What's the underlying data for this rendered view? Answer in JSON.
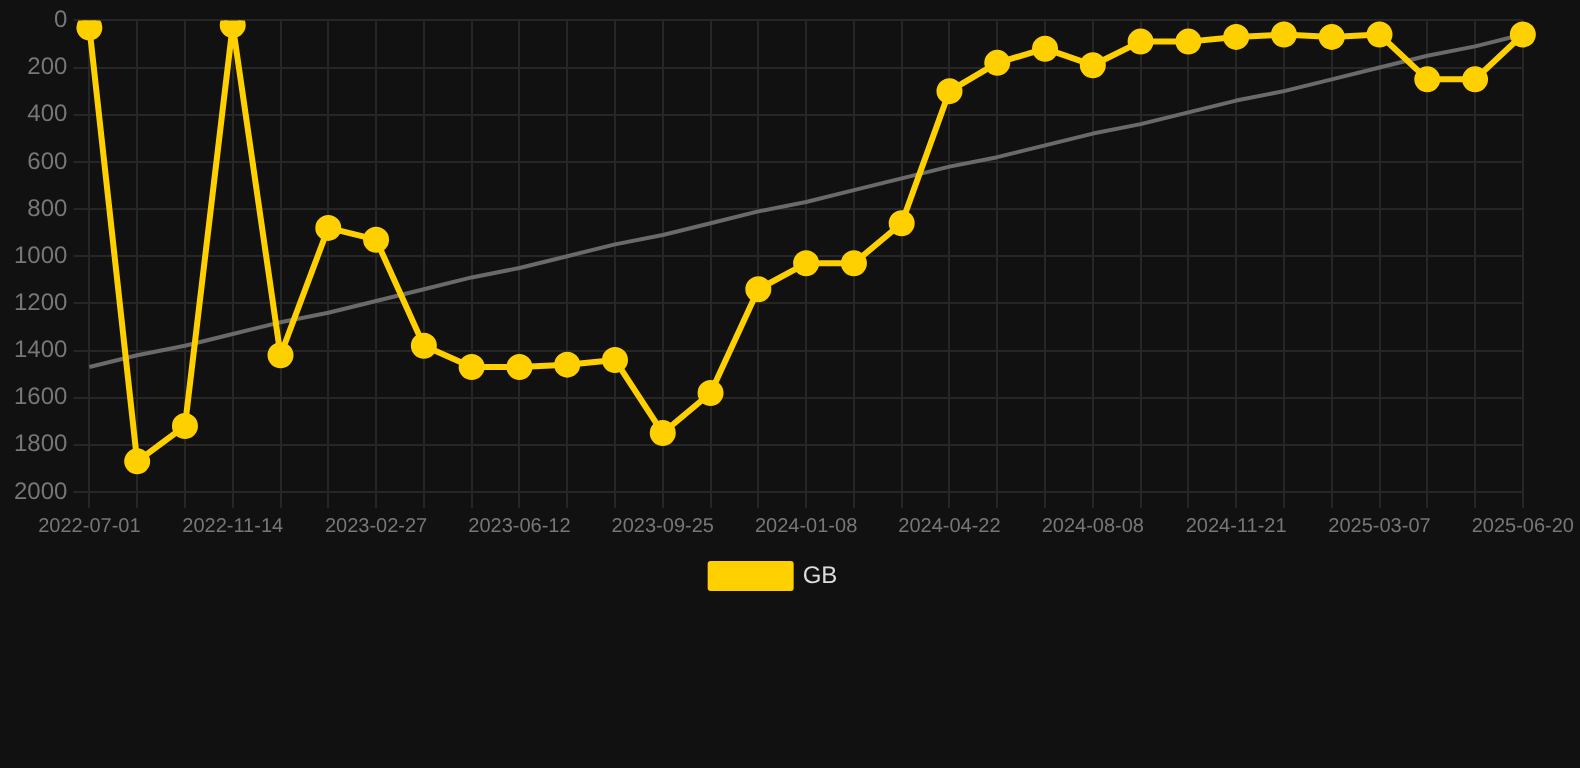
{
  "chart_data": {
    "type": "line",
    "categories": [
      "2022-07-01",
      null,
      null,
      "2022-11-14",
      null,
      null,
      "2023-02-27",
      null,
      null,
      "2023-06-12",
      null,
      null,
      "2023-09-25",
      null,
      null,
      "2024-01-08",
      null,
      null,
      "2024-04-22",
      null,
      null,
      "2024-08-08",
      null,
      null,
      "2024-11-21",
      null,
      null,
      "2025-03-07",
      null,
      null,
      "2025-06-20"
    ],
    "series": [
      {
        "name": "GB",
        "color": "#ffd000",
        "values": [
          30,
          1870,
          1720,
          20,
          1420,
          880,
          930,
          1380,
          1470,
          1470,
          1460,
          1440,
          1750,
          1580,
          1140,
          1030,
          1030,
          860,
          300,
          180,
          120,
          190,
          90,
          90,
          70,
          60,
          70,
          60,
          250,
          250,
          60
        ]
      },
      {
        "type": "line",
        "color": "#6a6a6a",
        "marker": "none",
        "values": [
          1470,
          1420,
          1380,
          1330,
          1280,
          1240,
          1190,
          1140,
          1090,
          1050,
          1000,
          950,
          910,
          860,
          810,
          770,
          720,
          670,
          620,
          580,
          530,
          480,
          440,
          390,
          340,
          300,
          250,
          200,
          150,
          110,
          60
        ]
      }
    ],
    "ylim": [
      2000,
      0
    ],
    "yticks": [
      0,
      200,
      400,
      600,
      800,
      1000,
      1200,
      1400,
      1600,
      1800,
      2000
    ],
    "grid": true,
    "legend": "bottom",
    "marker": "circle",
    "line_style": "solid"
  }
}
